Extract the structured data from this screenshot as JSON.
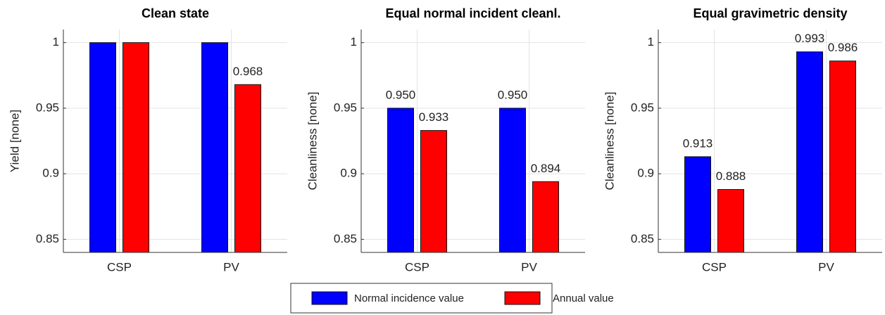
{
  "chart_data": [
    {
      "type": "bar",
      "title": "Clean state",
      "ylabel": "Yield [none]",
      "categories": [
        "CSP",
        "PV"
      ],
      "series": [
        {
          "name": "Normal incidence value",
          "color": "#0000ff",
          "values": [
            1,
            1
          ],
          "value_labels": [
            null,
            null
          ]
        },
        {
          "name": "Annual value",
          "color": "#ff0000",
          "values": [
            1,
            0.968
          ],
          "value_labels": [
            null,
            "0.968"
          ]
        }
      ],
      "ylim": [
        0.84,
        1.01
      ],
      "yticks": [
        0.85,
        0.9,
        0.95,
        1
      ],
      "grid": true
    },
    {
      "type": "bar",
      "title": "Equal normal incident cleanl.",
      "ylabel": "Cleanliness [none]",
      "categories": [
        "CSP",
        "PV"
      ],
      "series": [
        {
          "name": "Normal incidence value",
          "color": "#0000ff",
          "values": [
            0.95,
            0.95
          ],
          "value_labels": [
            "0.950",
            "0.950"
          ]
        },
        {
          "name": "Annual value",
          "color": "#ff0000",
          "values": [
            0.933,
            0.894
          ],
          "value_labels": [
            "0.933",
            "0.894"
          ]
        }
      ],
      "ylim": [
        0.84,
        1.01
      ],
      "yticks": [
        0.85,
        0.9,
        0.95,
        1
      ],
      "grid": true
    },
    {
      "type": "bar",
      "title": "Equal gravimetric density",
      "ylabel": "Cleanliness [none]",
      "categories": [
        "CSP",
        "PV"
      ],
      "series": [
        {
          "name": "Normal incidence value",
          "color": "#0000ff",
          "values": [
            0.913,
            0.993
          ],
          "value_labels": [
            "0.913",
            "0.993"
          ]
        },
        {
          "name": "Annual value",
          "color": "#ff0000",
          "values": [
            0.888,
            0.986
          ],
          "value_labels": [
            "0.888",
            "0.986"
          ]
        }
      ],
      "ylim": [
        0.84,
        1.01
      ],
      "yticks": [
        0.85,
        0.9,
        0.95,
        1
      ],
      "grid": true
    }
  ]
}
